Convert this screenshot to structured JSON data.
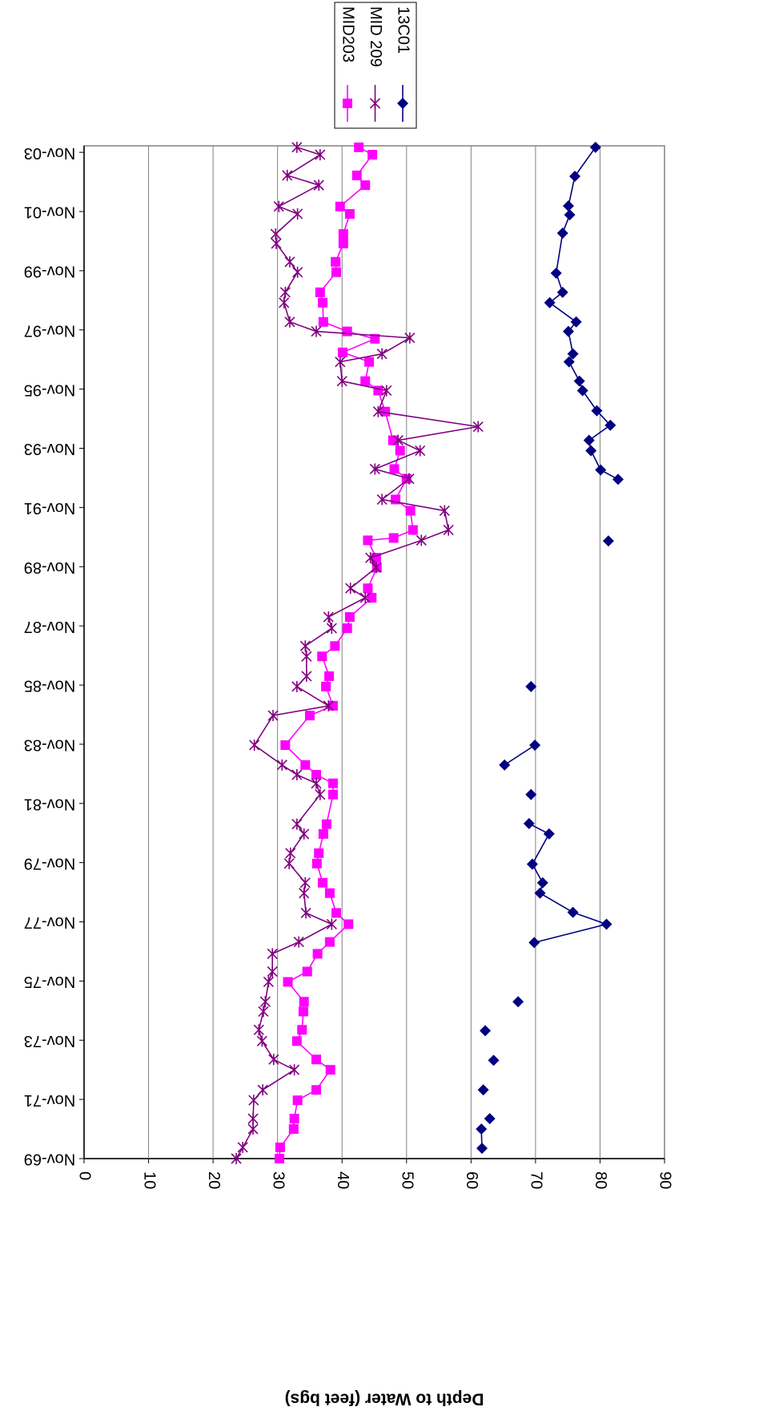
{
  "chart_data": {
    "type": "line",
    "axis_title": "Depth to Water (feet bgs)",
    "xlim": [
      1969.83,
      2004.05
    ],
    "xticks": [
      {
        "value": 1969.83,
        "label": "Nov-69"
      },
      {
        "value": 1971.83,
        "label": "Nov-71"
      },
      {
        "value": 1973.83,
        "label": "Nov-73"
      },
      {
        "value": 1975.83,
        "label": "Nov-75"
      },
      {
        "value": 1977.83,
        "label": "Nov-77"
      },
      {
        "value": 1979.83,
        "label": "Nov-79"
      },
      {
        "value": 1981.83,
        "label": "Nov-81"
      },
      {
        "value": 1983.83,
        "label": "Nov-83"
      },
      {
        "value": 1985.83,
        "label": "Nov-85"
      },
      {
        "value": 1987.83,
        "label": "Nov-87"
      },
      {
        "value": 1989.83,
        "label": "Nov-89"
      },
      {
        "value": 1991.83,
        "label": "Nov-91"
      },
      {
        "value": 1993.83,
        "label": "Nov-93"
      },
      {
        "value": 1995.83,
        "label": "Nov-95"
      },
      {
        "value": 1997.83,
        "label": "Nov-97"
      },
      {
        "value": 1999.83,
        "label": "Nov-99"
      },
      {
        "value": 2001.83,
        "label": "Nov-01"
      },
      {
        "value": 2003.83,
        "label": "Nov-03"
      }
    ],
    "ylim": [
      0,
      90
    ],
    "yticks": [
      0,
      10,
      20,
      30,
      40,
      50,
      60,
      70,
      80,
      90
    ],
    "grid": true,
    "series": [
      {
        "name": "MID203",
        "color": "#ff00ff",
        "marker": "square",
        "x": [
          1969.83,
          1970.21,
          1970.83,
          1971.18,
          1971.8,
          1972.15,
          1972.83,
          1973.18,
          1973.8,
          1974.18,
          1974.8,
          1975.13,
          1975.8,
          1976.15,
          1976.75,
          1977.15,
          1977.75,
          1978.13,
          1978.8,
          1979.15,
          1979.8,
          1980.15,
          1980.8,
          1981.13,
          1982.13,
          1982.51,
          1982.8,
          1983.13,
          1983.8,
          1984.8,
          1985.13,
          1985.78,
          1986.13,
          1986.8,
          1987.15,
          1987.75,
          1988.13,
          1988.78,
          1989.1,
          1989.8,
          1990.13,
          1990.72,
          1990.8,
          1991.07,
          1991.72,
          1992.1,
          1992.8,
          1993.13,
          1993.75,
          1994.1,
          1995.07,
          1995.78,
          1996.1,
          1996.75,
          1997.07,
          1997.53,
          1997.78,
          1998.1,
          1998.75,
          1999.1,
          1999.78,
          2000.13,
          2000.75,
          2001.07,
          2001.75,
          2002.0,
          2002.72,
          2003.05,
          2003.75,
          2004.0
        ],
        "values": [
          30.3,
          30.4,
          32.5,
          32.6,
          33.1,
          36,
          38.2,
          36,
          33,
          33.8,
          34,
          34.1,
          31.6,
          34.6,
          36.2,
          38.1,
          41,
          39.1,
          38.1,
          37,
          36.1,
          36.4,
          37.1,
          37.6,
          38.6,
          38.6,
          36,
          34.3,
          31.2,
          35,
          38.6,
          37.5,
          38,
          36.9,
          38.9,
          40.8,
          41.2,
          44.6,
          44,
          45.4,
          45.3,
          44,
          48,
          51,
          50.6,
          48.3,
          50,
          48.1,
          49,
          47.9,
          46.7,
          45.6,
          43.6,
          44.2,
          40.1,
          45.1,
          40.8,
          37.1,
          37,
          36.6,
          39.1,
          39,
          40.2,
          40.2,
          41.2,
          39.7,
          43.6,
          42.3,
          44.7,
          42.6
        ]
      },
      {
        "name": "MID 209",
        "color": "#800080",
        "marker": "asterisk",
        "x": [
          1969.83,
          1970.21,
          1970.83,
          1971.18,
          1971.8,
          1972.15,
          1972.83,
          1973.18,
          1973.8,
          1974.18,
          1974.8,
          1975.13,
          1975.8,
          1976.15,
          1976.75,
          1977.15,
          1977.75,
          1978.13,
          1978.8,
          1979.15,
          1979.8,
          1980.15,
          1980.8,
          1981.13,
          1982.13,
          1982.51,
          1982.8,
          1983.13,
          1983.8,
          1984.8,
          1985.13,
          1985.78,
          1986.13,
          1986.8,
          1987.15,
          1987.75,
          1988.13,
          1988.78,
          1989.1,
          1989.8,
          1990.13,
          1990.72,
          1991.07,
          1991.72,
          1992.1,
          1992.8,
          1993.13,
          1993.75,
          1994.1,
          1994.56,
          1995.07,
          1995.78,
          1996.1,
          1996.75,
          1997.02,
          1997.56,
          1997.78,
          1998.1,
          1998.75,
          1999.1,
          1999.78,
          2000.13,
          2000.75,
          2001.07,
          2001.75,
          2002.0,
          2002.72,
          2003.05,
          2003.75,
          2004.0
        ],
        "values": [
          23.6,
          24.6,
          26.2,
          26.2,
          26.3,
          27.7,
          32.6,
          29.4,
          27.6,
          27.1,
          27.8,
          28.1,
          28.6,
          29.2,
          29.2,
          33.3,
          38.4,
          34.4,
          34.1,
          34.3,
          31.8,
          32,
          34.1,
          33,
          36.6,
          36,
          33,
          30.7,
          26.4,
          29.3,
          37.9,
          33,
          34.5,
          34.5,
          34.3,
          38.4,
          37.9,
          43.6,
          41.3,
          45.3,
          44.4,
          52.3,
          56.5,
          55.9,
          46.2,
          50.4,
          45.1,
          52.1,
          48.7,
          61.1,
          45.6,
          46.9,
          40,
          39.7,
          46.2,
          50.5,
          36,
          31.9,
          31,
          31.2,
          33.1,
          31.9,
          29.8,
          29.7,
          33.1,
          30.2,
          36.4,
          31.5,
          36.6,
          33
        ]
      },
      {
        "name": "13C01",
        "color": "#000080",
        "marker": "diamond",
        "x": [
          1970.18,
          1970.83,
          null,
          1971.18,
          null,
          1972.15,
          null,
          1973.15,
          null,
          1974.15,
          null,
          1975.13,
          null,
          1977.13,
          1977.75,
          1978.15,
          1978.8,
          1979.15,
          1979.78,
          1980.8,
          1981.15,
          null,
          1982.13,
          null,
          1983.13,
          1983.8,
          null,
          1985.78,
          null,
          1990.7,
          null,
          1992.78,
          1993.1,
          1993.75,
          1994.1,
          1994.61,
          1995.1,
          1995.78,
          1996.1,
          1996.75,
          1997.02,
          1997.78,
          1998.1,
          1998.75,
          1999.1,
          1999.75,
          2001.1,
          2001.72,
          2002.02,
          2003.02,
          2004.0
        ],
        "values": [
          61.7,
          61.6,
          null,
          62.9,
          null,
          61.9,
          null,
          63.5,
          null,
          62.2,
          null,
          67.3,
          null,
          69.8,
          81,
          75.8,
          70.7,
          71.1,
          69.5,
          72.1,
          69,
          null,
          69.3,
          null,
          65.2,
          69.9,
          null,
          69.3,
          null,
          81.3,
          null,
          82.8,
          80.1,
          78.6,
          78.3,
          81.6,
          79.5,
          77.3,
          76.8,
          75.2,
          75.8,
          75.1,
          76.3,
          72.2,
          74.2,
          73.2,
          74.2,
          75.3,
          75.1,
          76.1,
          79.3
        ]
      }
    ]
  }
}
